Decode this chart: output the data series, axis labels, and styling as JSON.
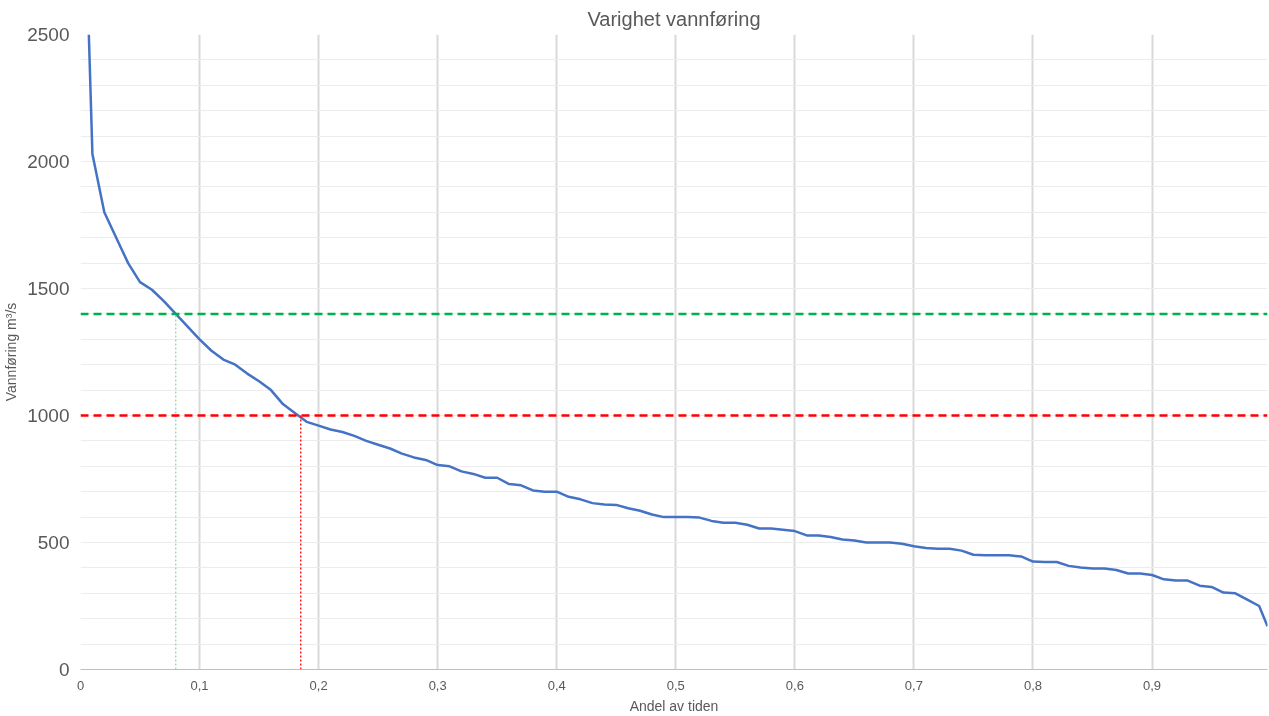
{
  "chart_data": {
    "type": "line",
    "title": "Varighet vannføring",
    "xlabel": "Andel av tiden",
    "ylabel": "Vannføring m³/s",
    "xlim": [
      0,
      0.997
    ],
    "ylim": [
      0,
      2500
    ],
    "xticks": [
      0,
      {
        "value": 0.1,
        "label": "0,1"
      },
      {
        "value": 0.2,
        "label": "0,2"
      },
      {
        "value": 0.3,
        "label": "0,3"
      },
      {
        "value": 0.4,
        "label": "0,4"
      },
      {
        "value": 0.5,
        "label": "0,5"
      },
      {
        "value": 0.6,
        "label": "0,6"
      },
      {
        "value": 0.7,
        "label": "0,7"
      },
      {
        "value": 0.8,
        "label": "0,8"
      },
      {
        "value": 0.9,
        "label": "0,9"
      }
    ],
    "yticks": [
      0,
      {
        "value": 100,
        "label": null
      },
      {
        "value": 200,
        "label": null
      },
      {
        "value": 300,
        "label": null
      },
      {
        "value": 400,
        "label": null
      },
      500,
      {
        "value": 600,
        "label": null
      },
      {
        "value": 700,
        "label": null
      },
      {
        "value": 800,
        "label": null
      },
      {
        "value": 900,
        "label": null
      },
      1000,
      {
        "value": 1100,
        "label": null
      },
      {
        "value": 1200,
        "label": null
      },
      {
        "value": 1300,
        "label": null
      },
      {
        "value": 1400,
        "label": null
      },
      1500,
      {
        "value": 1600,
        "label": null
      },
      {
        "value": 1700,
        "label": null
      },
      {
        "value": 1800,
        "label": null
      },
      {
        "value": 1900,
        "label": null
      },
      2000,
      {
        "value": 2100,
        "label": null
      },
      {
        "value": 2200,
        "label": null
      },
      {
        "value": 2300,
        "label": null
      },
      {
        "value": 2400,
        "label": null
      },
      2500
    ],
    "grid": true,
    "marker": "none",
    "line_style": "solid",
    "ref_lines": [
      {
        "axis": "y",
        "value": 1400,
        "color": "#00b050",
        "line_style": "dashed"
      },
      {
        "axis": "y",
        "value": 1000,
        "color": "#ff0000",
        "line_style": "dashed"
      }
    ],
    "series": [
      {
        "color": "#4472c4",
        "x": [
          0.007,
          0.01,
          0.02,
          0.03,
          0.04,
          0.05,
          0.06,
          0.07,
          0.08,
          0.09,
          0.1,
          0.11,
          0.12,
          0.13,
          0.14,
          0.15,
          0.16,
          0.17,
          0.18,
          0.19,
          0.2,
          0.21,
          0.22,
          0.23,
          0.24,
          0.25,
          0.26,
          0.27,
          0.28,
          0.29,
          0.3,
          0.31,
          0.32,
          0.33,
          0.34,
          0.35,
          0.36,
          0.37,
          0.38,
          0.39,
          0.4,
          0.41,
          0.42,
          0.43,
          0.44,
          0.45,
          0.46,
          0.47,
          0.48,
          0.49,
          0.5,
          0.51,
          0.52,
          0.53,
          0.54,
          0.55,
          0.56,
          0.57,
          0.58,
          0.59,
          0.6,
          0.61,
          0.62,
          0.63,
          0.64,
          0.65,
          0.66,
          0.67,
          0.68,
          0.69,
          0.7,
          0.71,
          0.72,
          0.73,
          0.74,
          0.75,
          0.76,
          0.77,
          0.78,
          0.79,
          0.8,
          0.81,
          0.82,
          0.83,
          0.84,
          0.85,
          0.86,
          0.87,
          0.88,
          0.89,
          0.9,
          0.91,
          0.92,
          0.93,
          0.94,
          0.95,
          0.96,
          0.97,
          0.98,
          0.99,
          0.997
        ],
        "values": [
          2500,
          2030,
          1800,
          1700,
          1600,
          1525,
          1495,
          1450,
          1400,
          1350,
          1300,
          1255,
          1220,
          1200,
          1165,
          1135,
          1100,
          1045,
          1010,
          975,
          960,
          945,
          935,
          920,
          900,
          885,
          870,
          850,
          835,
          825,
          805,
          800,
          780,
          770,
          755,
          755,
          730,
          725,
          705,
          700,
          700,
          680,
          670,
          655,
          650,
          648,
          635,
          625,
          610,
          600,
          600,
          600,
          598,
          585,
          578,
          578,
          570,
          555,
          555,
          550,
          545,
          528,
          528,
          522,
          512,
          508,
          500,
          500,
          500,
          495,
          485,
          478,
          475,
          475,
          468,
          452,
          450,
          450,
          450,
          445,
          425,
          423,
          423,
          408,
          402,
          398,
          398,
          392,
          378,
          378,
          372,
          355,
          350,
          350,
          330,
          325,
          303,
          300,
          275,
          250,
          170
        ]
      },
      {
        "type": "line",
        "color": "#92d8a8",
        "line_style": "dotted",
        "x": [
          0.08,
          0.08
        ],
        "values": [
          0,
          1400
        ]
      },
      {
        "type": "line",
        "color": "#ff0000",
        "line_style": "dotted",
        "x": [
          0.185,
          0.185
        ],
        "values": [
          0,
          1000
        ]
      }
    ]
  }
}
